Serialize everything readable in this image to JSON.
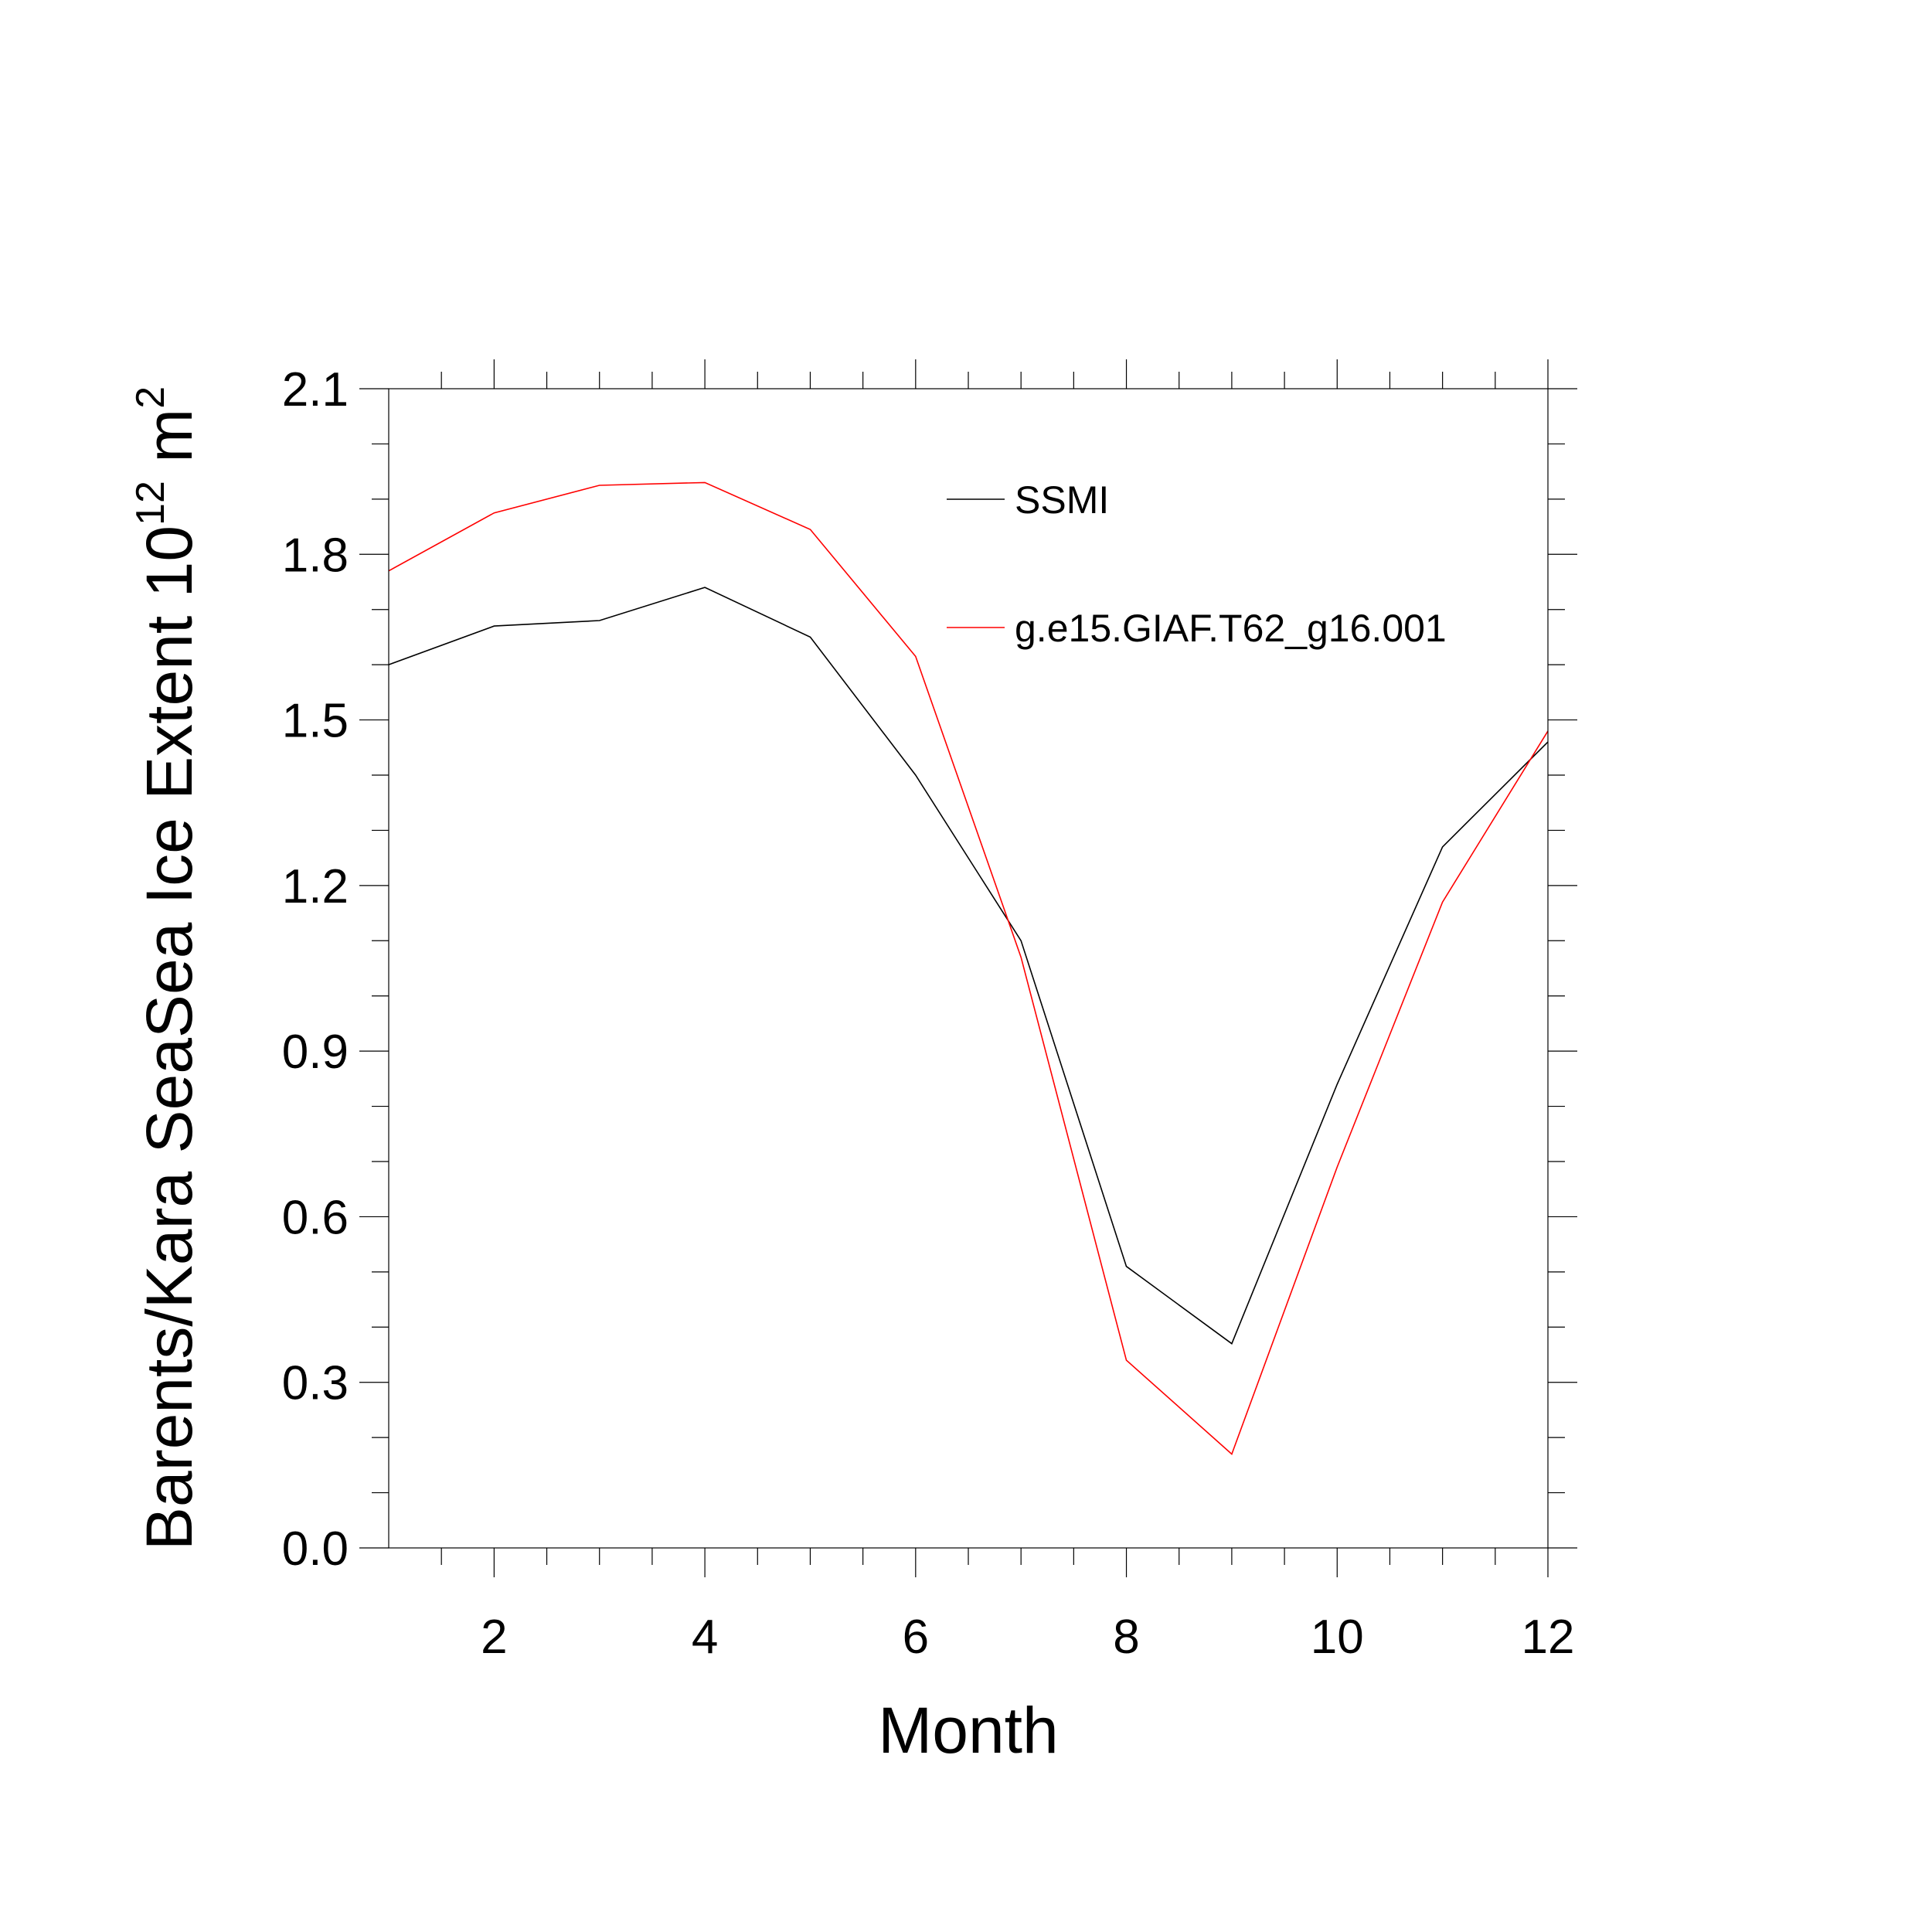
{
  "chart_data": {
    "type": "line",
    "title": "",
    "xlabel": "Month",
    "ylabel_text": "Barents/Kara SeaSea Ice Extent 10",
    "ylabel_exp1": "12",
    "ylabel_unit": " m",
    "ylabel_exp2": "2",
    "xlim": [
      1,
      12
    ],
    "ylim": [
      0.0,
      2.1
    ],
    "x_ticks": [
      2,
      4,
      6,
      8,
      10,
      12
    ],
    "x_tick_labels": [
      "2",
      "4",
      "6",
      "8",
      "10",
      "12"
    ],
    "y_ticks": [
      0.0,
      0.3,
      0.6,
      0.9,
      1.2,
      1.5,
      1.8,
      2.1
    ],
    "y_tick_labels": [
      "0.0",
      "0.3",
      "0.6",
      "0.9",
      "1.2",
      "1.5",
      "1.8",
      "2.1"
    ],
    "grid": false,
    "legend_position": "top-right",
    "x": [
      1,
      2,
      3,
      4,
      5,
      6,
      7,
      8,
      9,
      10,
      11,
      12
    ],
    "series": [
      {
        "name": "SSMI",
        "color": "#000000",
        "values": [
          1.6,
          1.67,
          1.68,
          1.74,
          1.65,
          1.4,
          1.1,
          0.51,
          0.37,
          0.84,
          1.27,
          1.46
        ]
      },
      {
        "name": "g.e15.GIAF.T62_g16.001",
        "color": "#ff0000",
        "values": [
          1.77,
          1.875,
          1.925,
          1.93,
          1.845,
          1.615,
          1.07,
          0.34,
          0.17,
          0.69,
          1.17,
          1.48
        ]
      }
    ]
  }
}
